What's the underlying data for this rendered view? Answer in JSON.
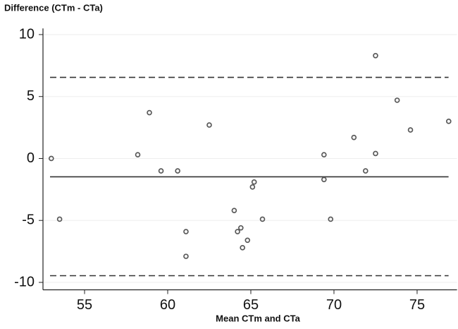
{
  "chart_data": {
    "type": "scatter",
    "y_axis_title": "Difference (CTm - CTa)",
    "x_axis_title": "Mean CTm and CTa",
    "x": [
      53.0,
      53.5,
      58.2,
      58.9,
      59.6,
      60.6,
      61.1,
      61.1,
      62.5,
      64.0,
      64.2,
      64.4,
      64.5,
      64.8,
      65.1,
      65.2,
      65.7,
      69.4,
      69.4,
      69.8,
      71.2,
      71.9,
      72.5,
      72.5,
      73.8,
      74.6,
      76.9
    ],
    "values": [
      0.0,
      -4.9,
      0.3,
      3.7,
      -1.0,
      -1.0,
      -5.9,
      -7.9,
      2.7,
      -4.2,
      -5.9,
      -5.6,
      -7.2,
      -6.6,
      -2.3,
      -1.9,
      -4.9,
      0.3,
      -1.7,
      -4.9,
      1.7,
      -1.0,
      8.3,
      0.4,
      4.7,
      2.3,
      3.0
    ],
    "color": "#555555",
    "reference_lines": [
      {
        "value": 6.55,
        "dashed": true
      },
      {
        "value": -1.48,
        "dashed": false
      },
      {
        "value": -9.46,
        "dashed": true
      }
    ],
    "xlim": [
      52.5,
      77.4
    ],
    "ylim": [
      -10.6,
      10.5
    ],
    "xticks": [
      55,
      60,
      65,
      70,
      75
    ],
    "yticks": [
      10,
      5,
      0,
      -5,
      -10
    ],
    "grid": true
  }
}
